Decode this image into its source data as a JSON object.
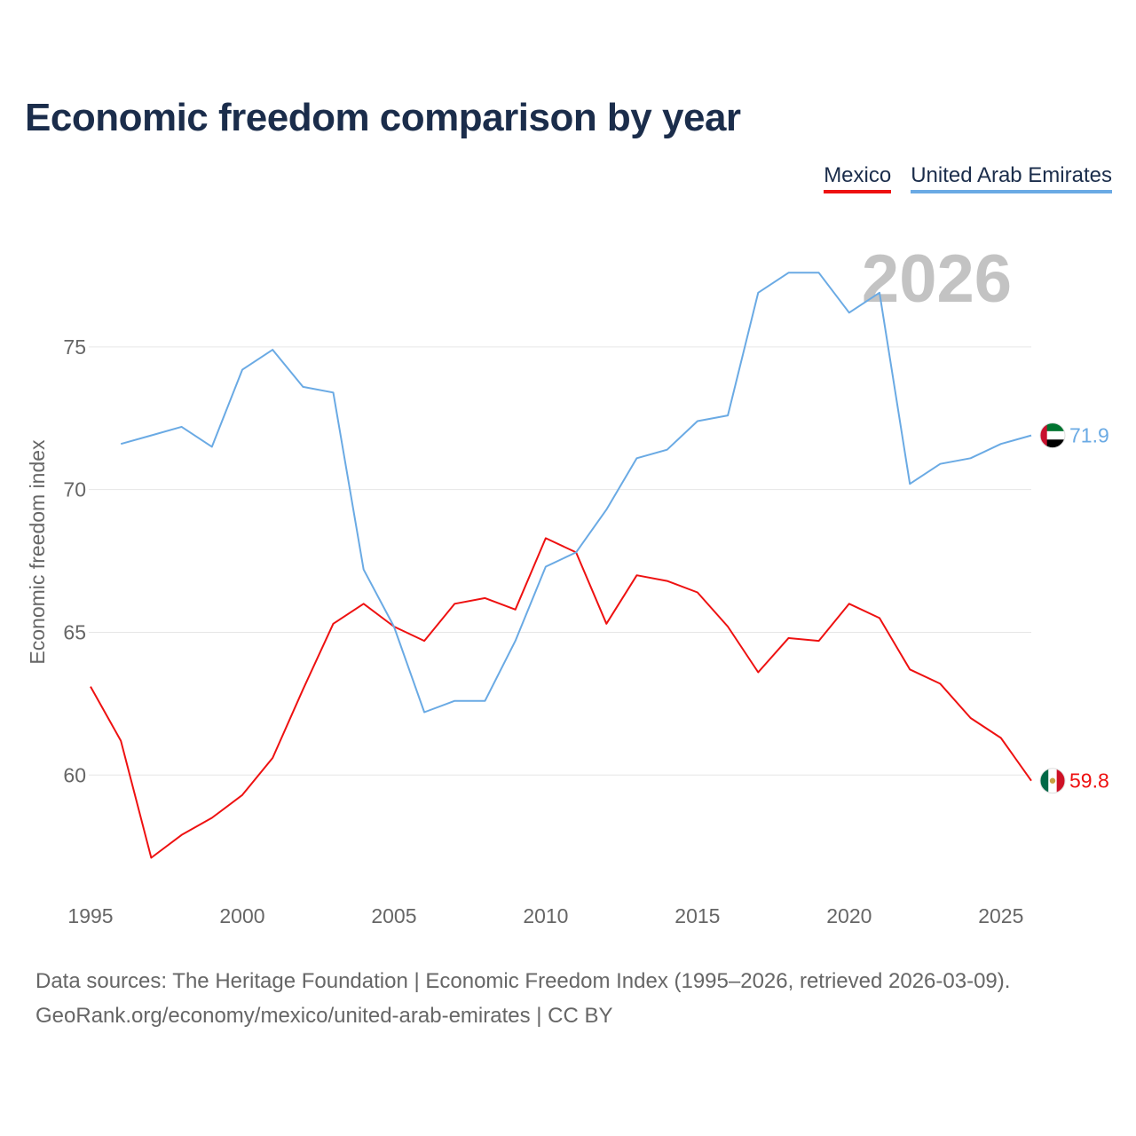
{
  "title": "Economic freedom comparison by year",
  "year_watermark": "2026",
  "source_lines": [
    "Data sources: The Heritage Foundation | Economic Freedom Index (1995–2026, retrieved 2026-03-09).",
    "GeoRank.org/economy/mexico/united-arab-emirates | CC BY"
  ],
  "colors": {
    "mexico": "#ee1111",
    "uae": "#6aaae4",
    "title": "#1b2d4b",
    "axis_text": "#666666",
    "grid": "#e6e6e6",
    "watermark": "#c3c3c3"
  },
  "chart_data": {
    "type": "line",
    "title": "Economic freedom comparison by year",
    "xlabel": "",
    "ylabel": "Economic freedom index",
    "xlim": [
      1995,
      2026
    ],
    "ylim": [
      55.5,
      80.5
    ],
    "xticks": [
      1995,
      2000,
      2005,
      2010,
      2015,
      2020,
      2025
    ],
    "yticks": [
      60,
      65,
      70,
      75
    ],
    "grid": true,
    "legend_position": "top-right",
    "series": [
      {
        "name": "Mexico",
        "color": "#ee1111",
        "flag": "mexico-flag",
        "end_label": "59.8",
        "x": [
          1995,
          1996,
          1997,
          1998,
          1999,
          2000,
          2001,
          2002,
          2003,
          2004,
          2005,
          2006,
          2007,
          2008,
          2009,
          2010,
          2011,
          2012,
          2013,
          2014,
          2015,
          2016,
          2017,
          2018,
          2019,
          2020,
          2021,
          2022,
          2023,
          2024,
          2025,
          2026
        ],
        "values": [
          63.1,
          61.2,
          57.1,
          57.9,
          58.5,
          59.3,
          60.6,
          63.0,
          65.3,
          66.0,
          65.2,
          64.7,
          66.0,
          66.2,
          65.8,
          68.3,
          67.8,
          65.3,
          67.0,
          66.8,
          66.4,
          65.2,
          63.6,
          64.8,
          64.7,
          66.0,
          65.5,
          63.7,
          63.2,
          62.0,
          61.3,
          59.8
        ]
      },
      {
        "name": "United Arab Emirates",
        "color": "#6aaae4",
        "flag": "uae-flag",
        "end_label": "71.9",
        "x": [
          1996,
          1997,
          1998,
          1999,
          2000,
          2001,
          2002,
          2003,
          2004,
          2005,
          2006,
          2007,
          2008,
          2009,
          2010,
          2011,
          2012,
          2013,
          2014,
          2015,
          2016,
          2017,
          2018,
          2019,
          2020,
          2021,
          2022,
          2023,
          2024,
          2025,
          2026
        ],
        "values": [
          71.6,
          71.9,
          72.2,
          71.5,
          74.2,
          74.9,
          73.6,
          73.4,
          67.2,
          65.2,
          62.2,
          62.6,
          62.6,
          64.7,
          67.3,
          67.8,
          69.3,
          71.1,
          71.4,
          72.4,
          72.6,
          76.9,
          77.6,
          77.6,
          76.2,
          76.9,
          70.2,
          70.9,
          71.1,
          71.6,
          71.9
        ]
      }
    ]
  }
}
